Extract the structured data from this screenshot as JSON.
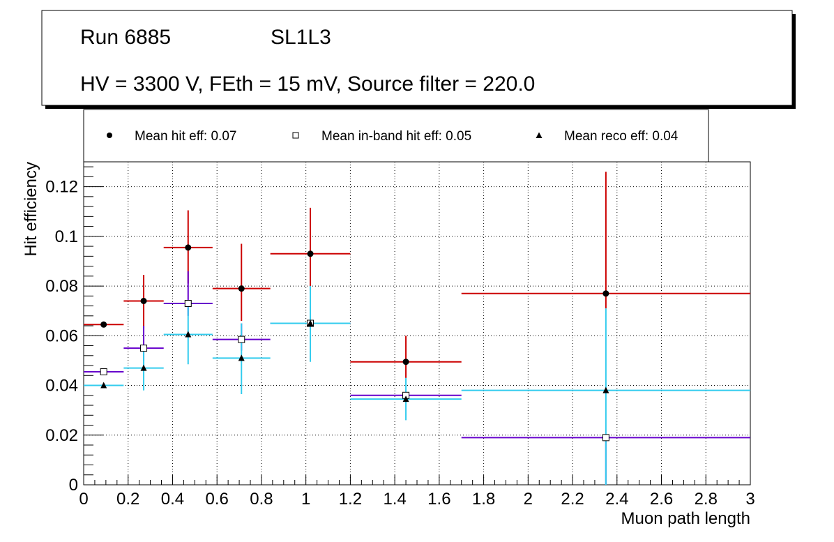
{
  "header": {
    "run_label": "Run 6885",
    "layer_label": "SL1L3",
    "conditions": "HV = 3300 V, FEth = 15 mV, Source filter = 220.0"
  },
  "legend": {
    "hit": "Mean hit  eff: 0.07",
    "inband": "Mean in-band hit eff: 0.05",
    "reco": "Mean reco eff: 0.04"
  },
  "chart_data": {
    "type": "scatter",
    "title": "",
    "xlabel": "Muon path length",
    "ylabel": "Hit efficiency",
    "xlim": [
      0,
      3
    ],
    "ylim": [
      0,
      0.13
    ],
    "grid": true,
    "x_ticks": [
      "0",
      "0.2",
      "0.4",
      "0.6",
      "0.8",
      "1",
      "1.2",
      "1.4",
      "1.6",
      "1.8",
      "2",
      "2.2",
      "2.4",
      "2.6",
      "2.8",
      "3"
    ],
    "x_tick_values": [
      0,
      0.2,
      0.4,
      0.6,
      0.8,
      1,
      1.2,
      1.4,
      1.6,
      1.8,
      2,
      2.2,
      2.4,
      2.6,
      2.8,
      3
    ],
    "y_ticks": [
      "0",
      "0.02",
      "0.04",
      "0.06",
      "0.08",
      "0.1",
      "0.12"
    ],
    "y_tick_values": [
      0,
      0.02,
      0.04,
      0.06,
      0.08,
      0.1,
      0.12
    ],
    "series": [
      {
        "name": "Mean hit  eff: 0.07",
        "key": "hit",
        "color": "#cc0000",
        "marker": "circle",
        "points": [
          {
            "x": 0.09,
            "xlo": 0.0,
            "xhi": 0.18,
            "y": 0.0645,
            "ylo": 0.0635,
            "yhi": 0.0655
          },
          {
            "x": 0.27,
            "xlo": 0.18,
            "xhi": 0.36,
            "y": 0.074,
            "ylo": 0.063,
            "yhi": 0.0845
          },
          {
            "x": 0.47,
            "xlo": 0.36,
            "xhi": 0.58,
            "y": 0.0955,
            "ylo": 0.081,
            "yhi": 0.1105
          },
          {
            "x": 0.71,
            "xlo": 0.58,
            "xhi": 0.84,
            "y": 0.079,
            "ylo": 0.066,
            "yhi": 0.097
          },
          {
            "x": 1.02,
            "xlo": 0.84,
            "xhi": 1.2,
            "y": 0.093,
            "ylo": 0.08,
            "yhi": 0.1115
          },
          {
            "x": 1.45,
            "xlo": 1.2,
            "xhi": 1.7,
            "y": 0.0495,
            "ylo": 0.043,
            "yhi": 0.06
          },
          {
            "x": 2.35,
            "xlo": 1.7,
            "xhi": 3.0,
            "y": 0.077,
            "ylo": 0.071,
            "yhi": 0.126
          }
        ]
      },
      {
        "name": "Mean in-band hit eff: 0.05",
        "key": "inband",
        "color": "#6600cc",
        "marker": "square",
        "points": [
          {
            "x": 0.09,
            "xlo": 0.0,
            "xhi": 0.18,
            "y": 0.0455,
            "ylo": 0.0445,
            "yhi": 0.0465
          },
          {
            "x": 0.27,
            "xlo": 0.18,
            "xhi": 0.36,
            "y": 0.055,
            "ylo": 0.05,
            "yhi": 0.064
          },
          {
            "x": 0.47,
            "xlo": 0.36,
            "xhi": 0.58,
            "y": 0.073,
            "ylo": 0.068,
            "yhi": 0.086
          },
          {
            "x": 0.71,
            "xlo": 0.58,
            "xhi": 0.84,
            "y": 0.0585,
            "ylo": 0.054,
            "yhi": 0.065
          },
          {
            "x": 1.02,
            "xlo": 0.84,
            "xhi": 1.2,
            "y": 0.065,
            "ylo": 0.0645,
            "yhi": 0.0655
          },
          {
            "x": 1.45,
            "xlo": 1.2,
            "xhi": 1.7,
            "y": 0.036,
            "ylo": 0.0355,
            "yhi": 0.0365
          },
          {
            "x": 2.35,
            "xlo": 1.7,
            "xhi": 3.0,
            "y": 0.019,
            "ylo": 0.0,
            "yhi": 0.0195
          }
        ]
      },
      {
        "name": "Mean reco eff: 0.04",
        "key": "reco",
        "color": "#33ccee",
        "marker": "triangle",
        "points": [
          {
            "x": 0.09,
            "xlo": 0.0,
            "xhi": 0.18,
            "y": 0.04,
            "ylo": 0.0395,
            "yhi": 0.0405
          },
          {
            "x": 0.27,
            "xlo": 0.18,
            "xhi": 0.36,
            "y": 0.047,
            "ylo": 0.038,
            "yhi": 0.055
          },
          {
            "x": 0.47,
            "xlo": 0.36,
            "xhi": 0.58,
            "y": 0.0605,
            "ylo": 0.0485,
            "yhi": 0.073
          },
          {
            "x": 0.71,
            "xlo": 0.58,
            "xhi": 0.84,
            "y": 0.051,
            "ylo": 0.0365,
            "yhi": 0.065
          },
          {
            "x": 1.02,
            "xlo": 0.84,
            "xhi": 1.2,
            "y": 0.065,
            "ylo": 0.0495,
            "yhi": 0.08
          },
          {
            "x": 1.45,
            "xlo": 1.2,
            "xhi": 1.7,
            "y": 0.0345,
            "ylo": 0.026,
            "yhi": 0.043
          },
          {
            "x": 2.35,
            "xlo": 1.7,
            "xhi": 3.0,
            "y": 0.038,
            "ylo": 0.0,
            "yhi": 0.071
          }
        ]
      }
    ]
  }
}
